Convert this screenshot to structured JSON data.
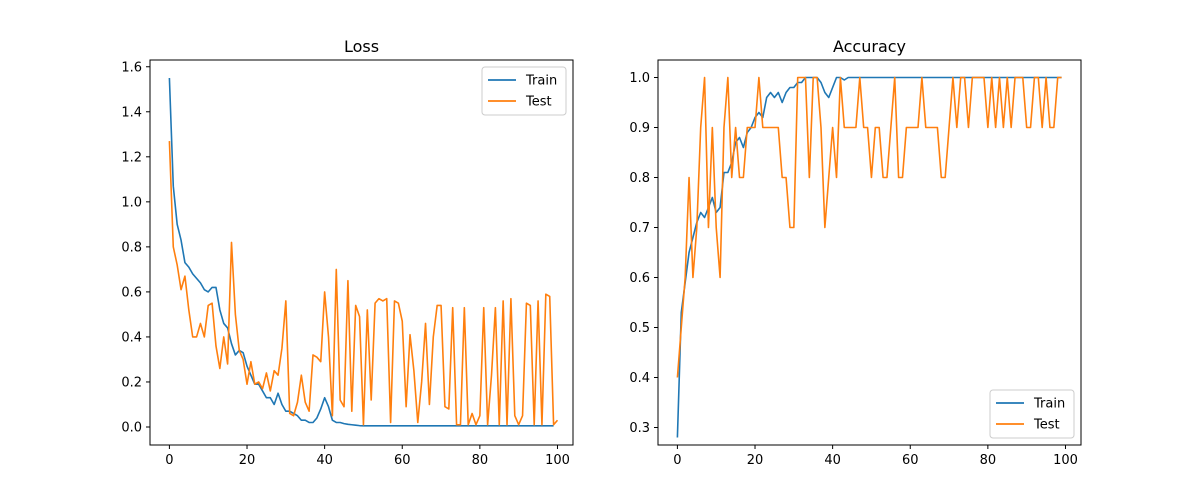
{
  "chart_data": [
    {
      "type": "line",
      "title": "Loss",
      "xlabel": "",
      "ylabel": "",
      "xlim": [
        -5,
        104
      ],
      "ylim": [
        -0.08,
        1.63
      ],
      "xticks": [
        0,
        20,
        40,
        60,
        80,
        100
      ],
      "yticks": [
        0.0,
        0.2,
        0.4,
        0.6,
        0.8,
        1.0,
        1.2,
        1.4,
        1.6
      ],
      "ytick_labels": [
        "0.0",
        "0.2",
        "0.4",
        "0.6",
        "0.8",
        "1.0",
        "1.2",
        "1.4",
        "1.6"
      ],
      "legend": "top-right",
      "grid": false,
      "series": [
        {
          "name": "Train",
          "color": "#1f77b4",
          "values": [
            1.55,
            1.07,
            0.9,
            0.83,
            0.73,
            0.71,
            0.68,
            0.66,
            0.64,
            0.61,
            0.6,
            0.62,
            0.62,
            0.52,
            0.46,
            0.44,
            0.37,
            0.32,
            0.34,
            0.33,
            0.27,
            0.23,
            0.19,
            0.19,
            0.16,
            0.13,
            0.13,
            0.1,
            0.15,
            0.1,
            0.07,
            0.07,
            0.06,
            0.05,
            0.03,
            0.03,
            0.02,
            0.02,
            0.04,
            0.08,
            0.13,
            0.09,
            0.03,
            0.02,
            0.02,
            0.015,
            0.012,
            0.01,
            0.008,
            0.006,
            0.005,
            0.005,
            0.005,
            0.005,
            0.005,
            0.005,
            0.005,
            0.005,
            0.005,
            0.005,
            0.005,
            0.005,
            0.005,
            0.005,
            0.005,
            0.005,
            0.005,
            0.005,
            0.005,
            0.005,
            0.005,
            0.005,
            0.005,
            0.005,
            0.005,
            0.005,
            0.005,
            0.005,
            0.005,
            0.005,
            0.005,
            0.005,
            0.005,
            0.005,
            0.005,
            0.005,
            0.005,
            0.005,
            0.005,
            0.005,
            0.005,
            0.005,
            0.005,
            0.005,
            0.005,
            0.005,
            0.005,
            0.005,
            0.005,
            0.005
          ]
        },
        {
          "name": "Test",
          "color": "#ff7f0e",
          "values": [
            1.27,
            0.8,
            0.72,
            0.61,
            0.67,
            0.52,
            0.4,
            0.4,
            0.46,
            0.4,
            0.54,
            0.55,
            0.36,
            0.26,
            0.4,
            0.28,
            0.82,
            0.5,
            0.34,
            0.3,
            0.19,
            0.29,
            0.19,
            0.2,
            0.17,
            0.24,
            0.16,
            0.25,
            0.23,
            0.35,
            0.56,
            0.06,
            0.05,
            0.11,
            0.23,
            0.11,
            0.07,
            0.32,
            0.31,
            0.29,
            0.6,
            0.4,
            0.05,
            0.7,
            0.12,
            0.09,
            0.65,
            0.07,
            0.54,
            0.49,
            0.01,
            0.52,
            0.12,
            0.55,
            0.57,
            0.56,
            0.57,
            0.02,
            0.56,
            0.55,
            0.47,
            0.09,
            0.41,
            0.25,
            0.02,
            0.2,
            0.46,
            0.1,
            0.4,
            0.54,
            0.54,
            0.09,
            0.08,
            0.53,
            0.01,
            0.01,
            0.53,
            0.01,
            0.06,
            0.01,
            0.05,
            0.53,
            0.01,
            0.23,
            0.53,
            0.01,
            0.56,
            0.01,
            0.57,
            0.05,
            0.01,
            0.05,
            0.55,
            0.54,
            0.01,
            0.56,
            0.01,
            0.59,
            0.58,
            0.01,
            0.03
          ]
        }
      ]
    },
    {
      "type": "line",
      "title": "Accuracy",
      "xlabel": "",
      "ylabel": "",
      "xlim": [
        -5,
        104
      ],
      "ylim": [
        0.265,
        1.035
      ],
      "xticks": [
        0,
        20,
        40,
        60,
        80,
        100
      ],
      "yticks": [
        0.3,
        0.4,
        0.5,
        0.6,
        0.7,
        0.8,
        0.9,
        1.0
      ],
      "ytick_labels": [
        "0.3",
        "0.4",
        "0.5",
        "0.6",
        "0.7",
        "0.8",
        "0.9",
        "1.0"
      ],
      "legend": "bottom-right",
      "grid": false,
      "series": [
        {
          "name": "Train",
          "color": "#1f77b4",
          "values": [
            0.28,
            0.53,
            0.59,
            0.65,
            0.68,
            0.71,
            0.73,
            0.72,
            0.74,
            0.76,
            0.73,
            0.74,
            0.81,
            0.81,
            0.83,
            0.87,
            0.88,
            0.86,
            0.89,
            0.9,
            0.92,
            0.93,
            0.92,
            0.96,
            0.97,
            0.96,
            0.97,
            0.95,
            0.97,
            0.98,
            0.98,
            0.99,
            0.99,
            1.0,
            1.0,
            1.0,
            1.0,
            0.99,
            0.97,
            0.96,
            0.98,
            1.0,
            1.0,
            0.995,
            1.0,
            1.0,
            1.0,
            1.0,
            1.0,
            1.0,
            1.0,
            1.0,
            1.0,
            1.0,
            1.0,
            1.0,
            1.0,
            1.0,
            1.0,
            1.0,
            1.0,
            1.0,
            1.0,
            1.0,
            1.0,
            1.0,
            1.0,
            1.0,
            1.0,
            1.0,
            1.0,
            1.0,
            1.0,
            1.0,
            1.0,
            1.0,
            1.0,
            1.0,
            1.0,
            1.0,
            1.0,
            1.0,
            1.0,
            1.0,
            1.0,
            1.0,
            1.0,
            1.0,
            1.0,
            1.0,
            1.0,
            1.0,
            1.0,
            1.0,
            1.0,
            1.0,
            1.0,
            1.0,
            1.0,
            1.0
          ]
        },
        {
          "name": "Test",
          "color": "#ff7f0e",
          "values": [
            0.4,
            0.5,
            0.6,
            0.8,
            0.6,
            0.7,
            0.9,
            1.0,
            0.7,
            0.9,
            0.7,
            0.6,
            0.9,
            1.0,
            0.8,
            0.9,
            0.8,
            0.8,
            0.9,
            0.9,
            0.9,
            1.0,
            0.9,
            0.9,
            0.9,
            0.9,
            0.9,
            0.8,
            0.8,
            0.7,
            0.7,
            1.0,
            1.0,
            1.0,
            0.8,
            1.0,
            1.0,
            0.9,
            0.7,
            0.8,
            0.9,
            0.8,
            1.0,
            0.9,
            0.9,
            0.9,
            0.9,
            1.0,
            0.9,
            0.9,
            0.8,
            0.9,
            0.9,
            0.8,
            0.8,
            0.9,
            1.0,
            0.8,
            0.8,
            0.9,
            0.9,
            0.9,
            0.9,
            1.0,
            0.9,
            0.9,
            0.9,
            0.9,
            0.8,
            0.8,
            0.9,
            1.0,
            0.9,
            1.0,
            1.0,
            0.9,
            1.0,
            1.0,
            1.0,
            1.0,
            0.9,
            1.0,
            0.9,
            1.0,
            0.9,
            1.0,
            0.9,
            1.0,
            1.0,
            1.0,
            0.9,
            0.9,
            1.0,
            1.0,
            0.9,
            1.0,
            0.9,
            0.9,
            1.0,
            1.0
          ]
        }
      ]
    }
  ]
}
